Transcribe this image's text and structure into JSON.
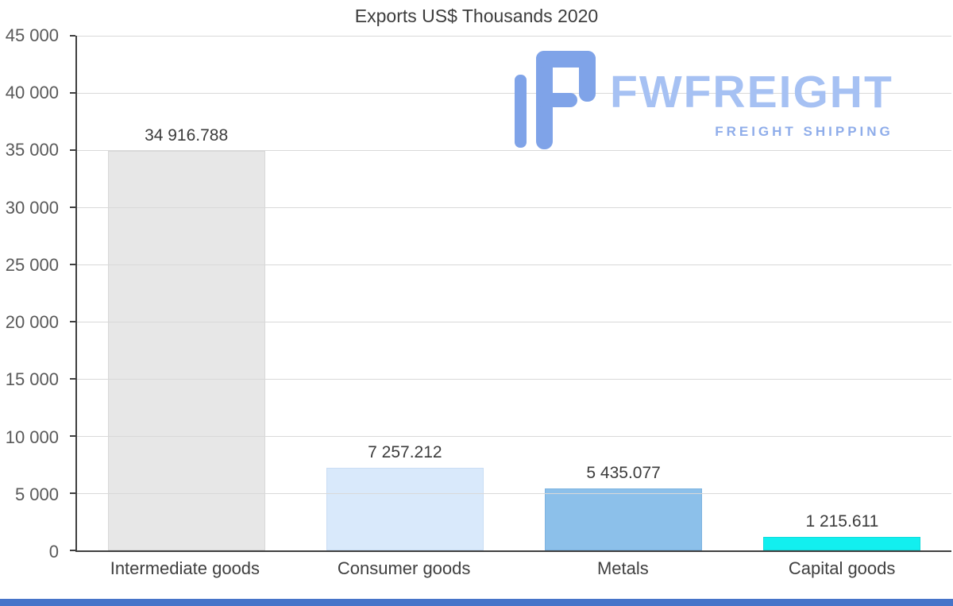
{
  "chart_data": {
    "type": "bar",
    "title": "Exports US$ Thousands 2020",
    "categories": [
      "Intermediate goods",
      "Consumer goods",
      "Metals",
      "Capital goods"
    ],
    "values": [
      34916.788,
      7257.212,
      5435.077,
      1215.611
    ],
    "value_labels": [
      "34 916.788",
      "7 257.212",
      "5 435.077",
      "1 215.611"
    ],
    "bar_colors": [
      "#e7e7e7",
      "#d9e9fb",
      "#8cc0ea",
      "#12efef"
    ],
    "bar_border_colors": [
      "#d8d8d8",
      "#c9ddf4",
      "#7cb2e0",
      "#0fdbdb"
    ],
    "xlabel": "",
    "ylabel": "",
    "ylim": [
      0,
      45000
    ],
    "ytick_interval": 5000,
    "ytick_labels": [
      "0",
      "5 000",
      "10 000",
      "15 000",
      "20 000",
      "25 000",
      "30 000",
      "35 000",
      "40 000",
      "45 000"
    ],
    "grid": true,
    "legend": "none"
  },
  "watermark": {
    "brand": "FWFREIGHT",
    "tagline": "FREIGHT SHIPPING",
    "icon_color": "#7fa3e8",
    "brand_color": "#a6c1f3",
    "tagline_color": "#8fadea"
  },
  "footer": {
    "bar_color": "#4674c9"
  }
}
